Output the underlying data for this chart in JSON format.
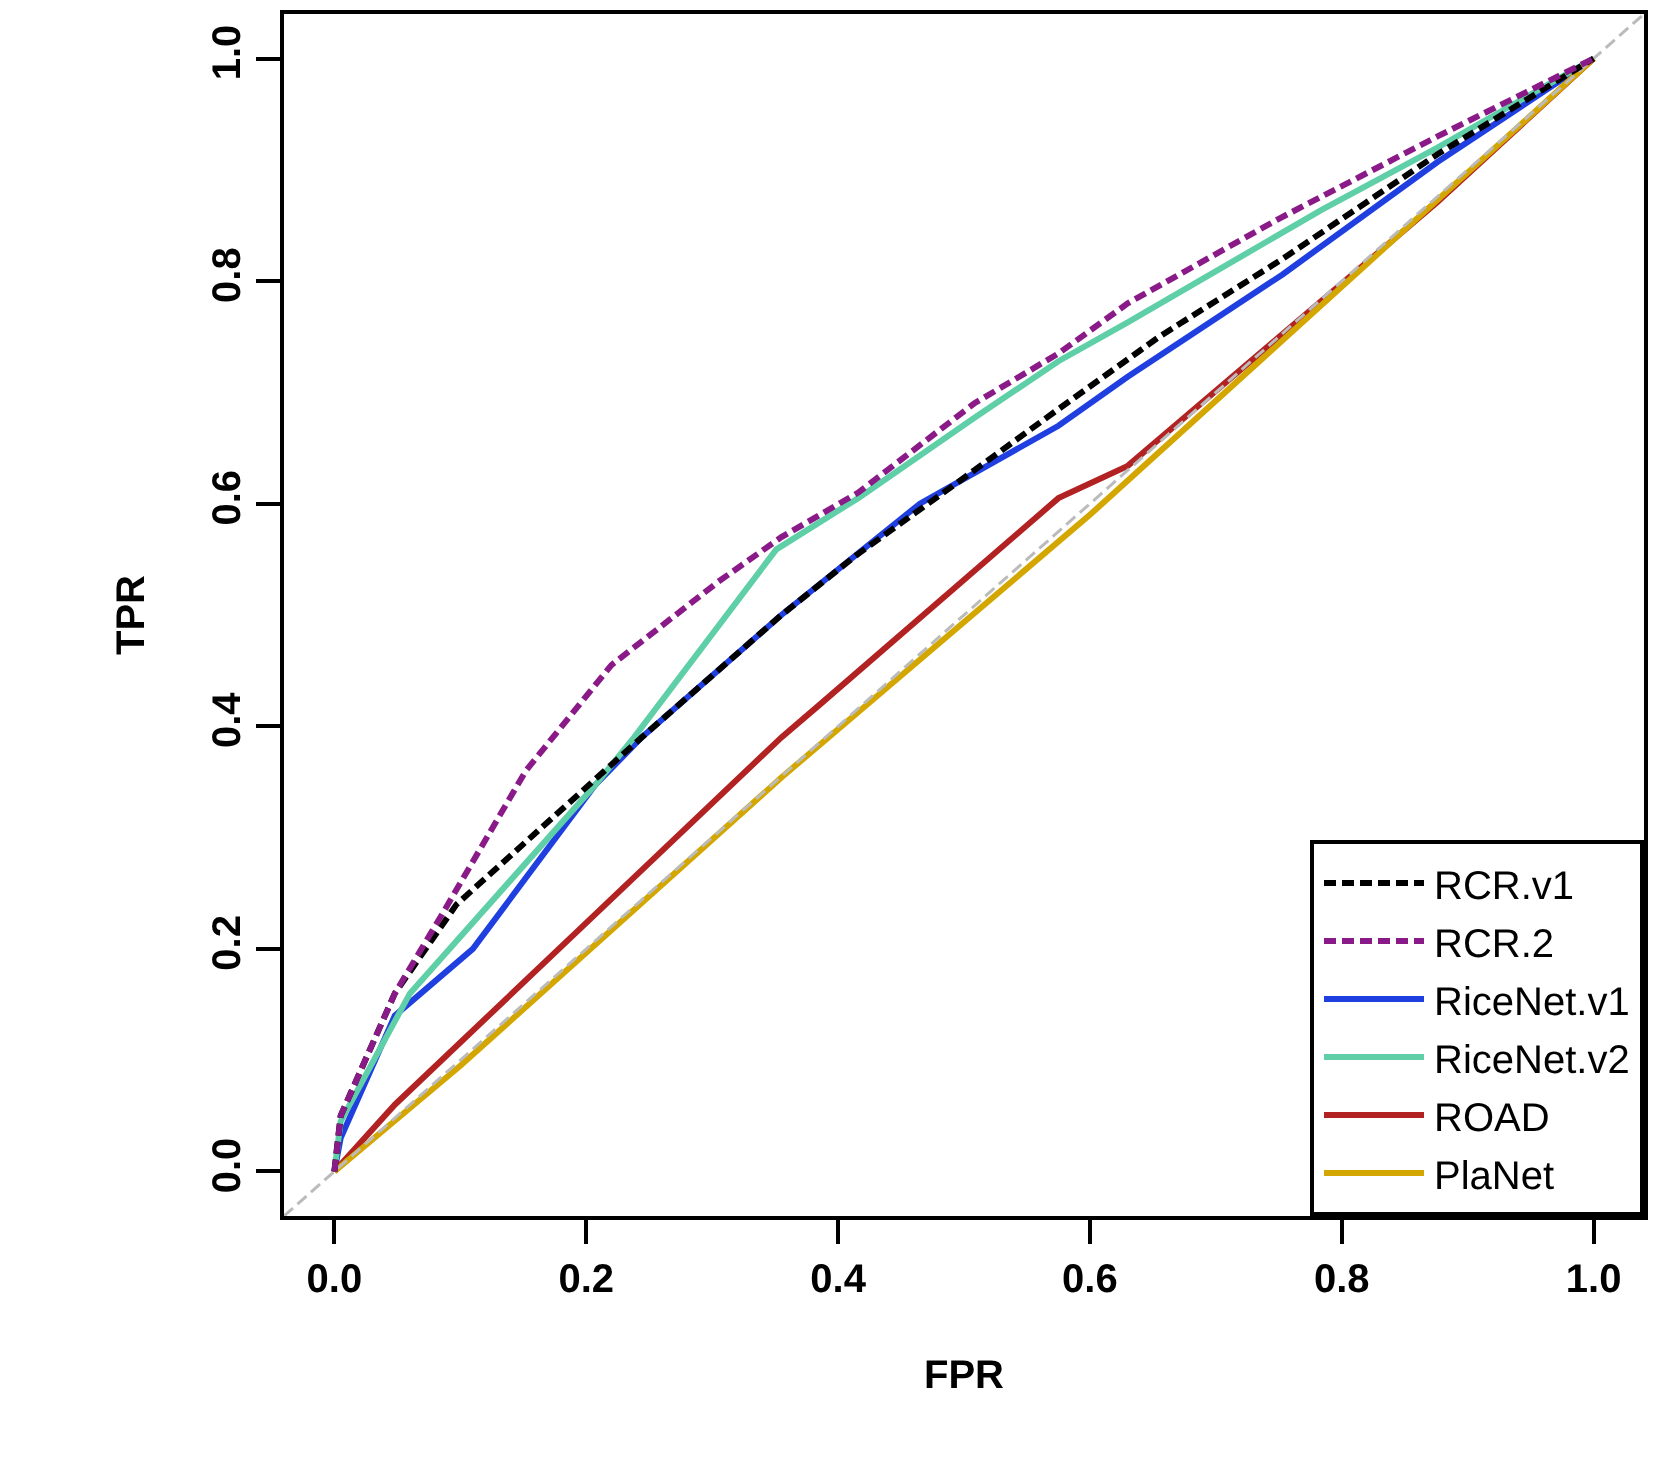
{
  "chart_data": {
    "type": "line",
    "xlabel": "FPR",
    "ylabel": "TPR",
    "xlim": [
      -0.04,
      1.04
    ],
    "ylim": [
      -0.04,
      1.04
    ],
    "xticks": [
      {
        "value": 0,
        "label": "0.0"
      },
      0.2,
      0.4,
      0.6,
      0.8,
      {
        "value": 1,
        "label": "1.0"
      }
    ],
    "yticks": [
      {
        "value": 0,
        "label": "0.0"
      },
      0.2,
      0.4,
      0.6,
      0.8,
      {
        "value": 1,
        "label": "1.0"
      }
    ],
    "legend": "bottom right",
    "marker": "none",
    "series": [
      {
        "name": null,
        "color": "#bbbbbb",
        "line_style": "dashed",
        "x": [
          -0.04,
          1.04
        ],
        "values": [
          -0.04,
          1.04
        ]
      },
      {
        "name": "RCR.v1",
        "color": "#000000",
        "line_style": "dashed",
        "x": [
          0,
          0.005,
          0.048,
          0.097,
          0.195,
          0.244,
          0.355,
          0.416,
          0.496,
          0.575,
          0.655,
          0.753,
          0.876,
          1
        ],
        "values": [
          0,
          0.05,
          0.16,
          0.24,
          0.34,
          0.39,
          0.5,
          0.555,
          0.62,
          0.685,
          0.75,
          0.82,
          0.914,
          1
        ]
      },
      {
        "name": "RCR.2",
        "color": "#8b1a89",
        "line_style": "dashed",
        "x": [
          0,
          0.005,
          0.048,
          0.085,
          0.152,
          0.22,
          0.305,
          0.355,
          0.416,
          0.508,
          0.575,
          0.63,
          0.75,
          0.876,
          1
        ],
        "values": [
          0,
          0.05,
          0.16,
          0.23,
          0.36,
          0.455,
          0.53,
          0.57,
          0.61,
          0.69,
          0.735,
          0.78,
          0.856,
          0.93,
          1
        ]
      },
      {
        "name": "RiceNet.v1",
        "color": "#1f3fe0",
        "line_style": "solid",
        "x": [
          0,
          0.005,
          0.048,
          0.11,
          0.207,
          0.244,
          0.355,
          0.465,
          0.575,
          0.63,
          0.753,
          0.876,
          1
        ],
        "values": [
          0,
          0.03,
          0.14,
          0.2,
          0.347,
          0.39,
          0.5,
          0.6,
          0.67,
          0.714,
          0.806,
          0.907,
          1
        ]
      },
      {
        "name": "RiceNet.v2",
        "color": "#5fcfa8",
        "line_style": "solid",
        "x": [
          0,
          0.005,
          0.06,
          0.207,
          0.238,
          0.351,
          0.416,
          0.508,
          0.575,
          0.63,
          0.784,
          0.876,
          1
        ],
        "values": [
          0,
          0.045,
          0.16,
          0.347,
          0.39,
          0.559,
          0.605,
          0.677,
          0.728,
          0.763,
          0.864,
          0.92,
          1
        ]
      },
      {
        "name": "ROAD",
        "color": "#b22222",
        "line_style": "solid",
        "x": [
          0,
          0.048,
          0.195,
          0.355,
          0.385,
          0.575,
          0.63,
          0.876,
          1
        ],
        "values": [
          0,
          0.06,
          0.218,
          0.39,
          0.419,
          0.605,
          0.634,
          0.871,
          1
        ]
      },
      {
        "name": "PlaNet",
        "color": "#d4a600",
        "line_style": "solid",
        "x": [
          0,
          0.1,
          0.355,
          0.6,
          1
        ],
        "values": [
          0,
          0.095,
          0.354,
          0.59,
          1
        ]
      }
    ]
  }
}
